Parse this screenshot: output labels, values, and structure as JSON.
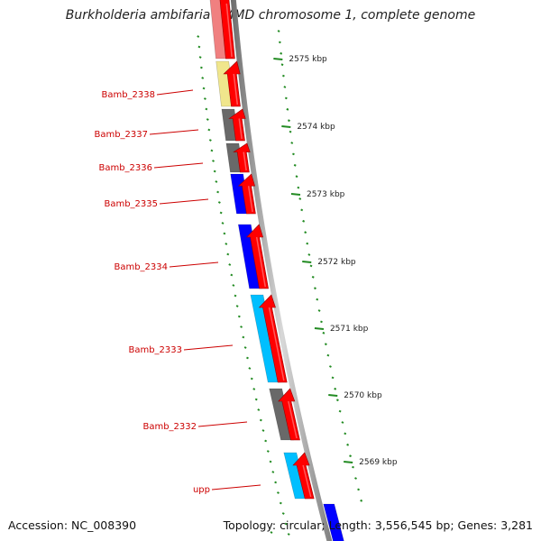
{
  "title": "Burkholderia ambifaria AMMD chromosome 1, complete genome",
  "footer": {
    "accession": "Accession: NC_008390",
    "summary": "Topology: circular; Length: 3,556,545 bp; Genes: 3,281"
  },
  "colors": {
    "forward_gene": "#ff0000",
    "label": "#cc0000",
    "tick": "#228b22",
    "backbone": "#888888"
  },
  "scale": {
    "unit": "kbp",
    "labels": [
      "2575 kbp",
      "2574 kbp",
      "2573 kbp",
      "2572 kbp",
      "2571 kbp",
      "2570 kbp",
      "2569 kbp"
    ]
  },
  "genes": [
    {
      "label": "",
      "cog_color": "#f08080"
    },
    {
      "label": "Bamb_2338",
      "cog_color": "#f0e68c"
    },
    {
      "label": "Bamb_2337",
      "cog_color": "#696969"
    },
    {
      "label": "Bamb_2336",
      "cog_color": "#696969"
    },
    {
      "label": "Bamb_2335",
      "cog_color": "#0000ff"
    },
    {
      "label": "Bamb_2334",
      "cog_color": "#0000ff"
    },
    {
      "label": "Bamb_2333",
      "cog_color": "#00bfff"
    },
    {
      "label": "Bamb_2332",
      "cog_color": "#696969"
    },
    {
      "label": "upp",
      "cog_color": "#00bfff"
    },
    {
      "label": "",
      "cog_color": "#0000ff"
    }
  ]
}
